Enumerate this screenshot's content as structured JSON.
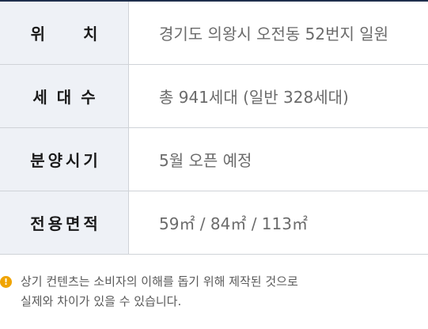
{
  "table": {
    "rows": [
      {
        "label": "위치",
        "value": "경기도 의왕시 오전동 52번지 일원"
      },
      {
        "label": "세대수",
        "value": "총 941세대 (일반 328세대)"
      },
      {
        "label": "분양시기",
        "value": "5월 오픈 예정"
      },
      {
        "label": "전용면적",
        "value": "59㎡ / 84㎡ / 113㎡"
      }
    ]
  },
  "notice": {
    "icon": "info-icon",
    "icon_glyph": "!",
    "line1": "상기 컨텐츠는 소비자의 이해를 돕기 위해 제작된 것으로",
    "line2": "실제와 차이가 있을 수 있습니다."
  },
  "colors": {
    "label_bg": "#eef1f6",
    "top_rule": "#1f2f4d",
    "icon": "#f0a400"
  }
}
